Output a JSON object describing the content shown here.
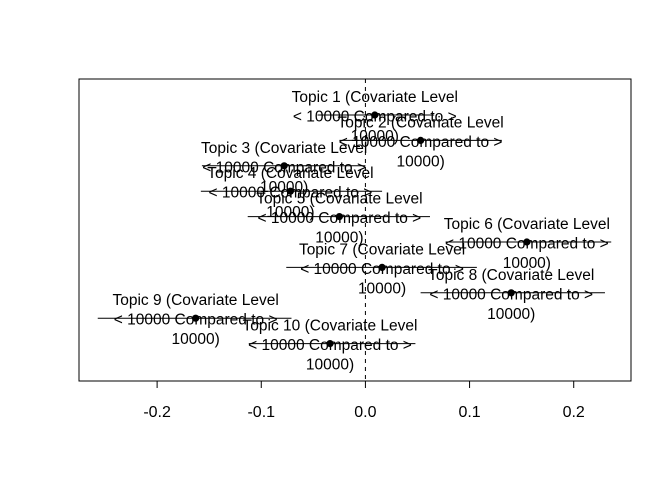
{
  "chart_data": {
    "type": "scatter",
    "title": "",
    "xlabel": "",
    "ylabel": "",
    "xlim": [
      -0.275,
      0.255
    ],
    "xticks": [
      -0.2,
      -0.1,
      0.0,
      0.1,
      0.2
    ],
    "xtick_labels": [
      "-0.2",
      "-0.1",
      "0.0",
      "0.1",
      "0.2"
    ],
    "reference_line": 0,
    "grid": false,
    "legend": "none",
    "points": [
      {
        "label": [
          "Topic 1 (Covariate Level",
          "< 10000 Compared to >",
          "10000)"
        ],
        "estimate": 0.009,
        "ci": [
          -0.046,
          0.066
        ]
      },
      {
        "label": [
          "Topic 2 (Covariate Level",
          "< 10000 Compared to >",
          "10000)"
        ],
        "estimate": 0.053,
        "ci": [
          -0.025,
          0.131
        ]
      },
      {
        "label": [
          "Topic 3 (Covariate Level",
          "< 10000 Compared to >",
          "10000)"
        ],
        "estimate": -0.078,
        "ci": [
          -0.157,
          0.0
        ]
      },
      {
        "label": [
          "Topic 4 (Covariate Level",
          "< 10000 Compared to >",
          "10000)"
        ],
        "estimate": -0.072,
        "ci": [
          -0.158,
          0.016
        ]
      },
      {
        "label": [
          "Topic 5 (Covariate Level",
          "< 10000 Compared to >",
          "10000)"
        ],
        "estimate": -0.025,
        "ci": [
          -0.113,
          0.062
        ]
      },
      {
        "label": [
          "Topic 6 (Covariate Level",
          "< 10000 Compared to >",
          "10000)"
        ],
        "estimate": 0.155,
        "ci": [
          0.077,
          0.236
        ]
      },
      {
        "label": [
          "Topic 7 (Covariate Level",
          "< 10000 Compared to >",
          "10000)"
        ],
        "estimate": 0.016,
        "ci": [
          -0.076,
          0.107
        ]
      },
      {
        "label": [
          "Topic 8 (Covariate Level",
          "< 10000 Compared to >",
          "10000)"
        ],
        "estimate": 0.14,
        "ci": [
          0.053,
          0.23
        ]
      },
      {
        "label": [
          "Topic 9 (Covariate Level",
          "< 10000 Compared to >",
          "10000)"
        ],
        "estimate": -0.163,
        "ci": [
          -0.257,
          -0.071
        ]
      },
      {
        "label": [
          "Topic 10 (Covariate Level",
          "< 10000 Compared to >",
          "10000)"
        ],
        "estimate": -0.034,
        "ci": [
          -0.112,
          0.048
        ]
      }
    ]
  }
}
